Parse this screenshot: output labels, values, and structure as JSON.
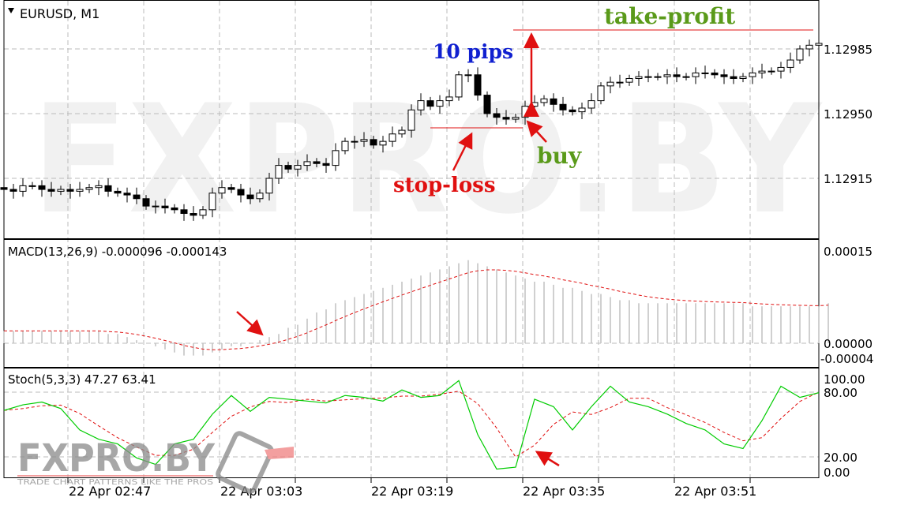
{
  "header": {
    "symbol_label": "EURUSD, M1",
    "dropdown_icon": "triangle-down-icon"
  },
  "main_chart": {
    "price_ticks": [
      1.12985,
      1.1295,
      1.12915
    ],
    "price_tick_labels": [
      "1.12985",
      "1.12950",
      "1.12915"
    ],
    "closes": [
      1.12909,
      1.12908,
      1.12911,
      1.12911,
      1.12909,
      1.12908,
      1.12909,
      1.12908,
      1.12909,
      1.1291,
      1.12911,
      1.12908,
      1.12907,
      1.12906,
      1.12904,
      1.129,
      1.129,
      1.12899,
      1.12898,
      1.12896,
      1.12895,
      1.12898,
      1.12907,
      1.1291,
      1.12909,
      1.12906,
      1.12904,
      1.12907,
      1.12915,
      1.12922,
      1.1292,
      1.12922,
      1.12924,
      1.12923,
      1.12922,
      1.1293,
      1.12935,
      1.12935,
      1.12936,
      1.12933,
      1.12935,
      1.12939,
      1.12941,
      1.12952,
      1.12957,
      1.12954,
      1.12957,
      1.12959,
      1.12971,
      1.12971,
      1.1296,
      1.1295,
      1.12948,
      1.12947,
      1.12948,
      1.12954,
      1.12956,
      1.12958,
      1.12955,
      1.12952,
      1.12951,
      1.12953,
      1.12957,
      1.12965,
      1.12967,
      1.12967,
      1.12969,
      1.1297,
      1.1297,
      1.1297,
      1.12971,
      1.1297,
      1.1297,
      1.12972,
      1.12972,
      1.12971,
      1.1297,
      1.12969,
      1.1297,
      1.12972,
      1.12973,
      1.12973,
      1.12975,
      1.12979,
      1.12985,
      1.12987,
      1.12988
    ],
    "annotations": {
      "take_profit": "take-profit",
      "pips": "10 pips",
      "stop_loss": "stop-loss",
      "buy": "buy"
    },
    "annotation_colors": {
      "take_profit": "#5a9a1a",
      "pips": "#1020d0",
      "stop_loss": "#e01010",
      "buy": "#5a9a1a",
      "lines": "#e01010"
    },
    "watermark": "FXPRO.BY"
  },
  "macd": {
    "label": "MACD(13,26,9) -0.000096 -0.000143",
    "ticks": [
      "0.00015",
      "0.00000",
      "-0.00004"
    ],
    "histogram": [
      2e-05,
      2e-05,
      2e-05,
      2e-05,
      2e-05,
      2e-05,
      2e-05,
      2e-05,
      2e-05,
      2e-05,
      2e-05,
      1.5e-05,
      1.5e-05,
      1e-05,
      5e-06,
      0,
      -5e-06,
      -1e-05,
      -1.5e-05,
      -2e-05,
      -2e-05,
      -2e-05,
      -1.5e-05,
      -1e-05,
      -5e-06,
      -5e-06,
      0,
      5e-06,
      1e-05,
      1.5e-05,
      2.5e-05,
      3e-05,
      4e-05,
      5e-05,
      5.5e-05,
      6.5e-05,
      7e-05,
      7.5e-05,
      8e-05,
      8.5e-05,
      9e-05,
      9.5e-05,
      0.0001,
      0.000105,
      0.00011,
      0.000115,
      0.00012,
      0.000125,
      0.00013,
      0.000135,
      0.00013,
      0.000125,
      0.00012,
      0.000115,
      0.00011,
      0.000105,
      0.0001,
      0.0001,
      9.5e-05,
      9e-05,
      9e-05,
      8.5e-05,
      8e-05,
      8e-05,
      7.5e-05,
      7e-05,
      7e-05,
      6.5e-05,
      6.5e-05,
      6.5e-05,
      6.5e-05,
      6.5e-05,
      6.5e-05,
      6.5e-05,
      6.5e-05,
      6.5e-05,
      6.5e-05,
      6.5e-05,
      6.5e-05,
      6e-05,
      6e-05,
      6e-05,
      6e-05,
      6e-05,
      6e-05,
      6e-05,
      6e-05,
      6.5e-05
    ],
    "colors": {
      "histogram": "#c0c0c0",
      "signal": "#e01010"
    }
  },
  "stoch": {
    "label": "Stoch(5,3,3) 47.27 63.41",
    "ticks": [
      "100.00",
      "80.00",
      "20.00",
      "0.00"
    ],
    "main": [
      66,
      72,
      75,
      68,
      45,
      35,
      30,
      15,
      8,
      30,
      35,
      62,
      82,
      65,
      80,
      78,
      76,
      74,
      82,
      80,
      76,
      88,
      80,
      82,
      98,
      40,
      3,
      5,
      78,
      70,
      45,
      70,
      92,
      75,
      70,
      62,
      52,
      45,
      30,
      25,
      55,
      92,
      80,
      85
    ],
    "colors": {
      "main": "#00cc00",
      "signal": "#e01010"
    }
  },
  "time_axis": [
    "22 Apr 02:47",
    "22 Apr 03:03",
    "22 Apr 03:19",
    "22 Apr 03:35",
    "22 Apr 03:51"
  ],
  "logo": {
    "text": "FXPRO.BY",
    "tagline": "TRADE CHART PATTERNS LIKE THE PROS"
  }
}
